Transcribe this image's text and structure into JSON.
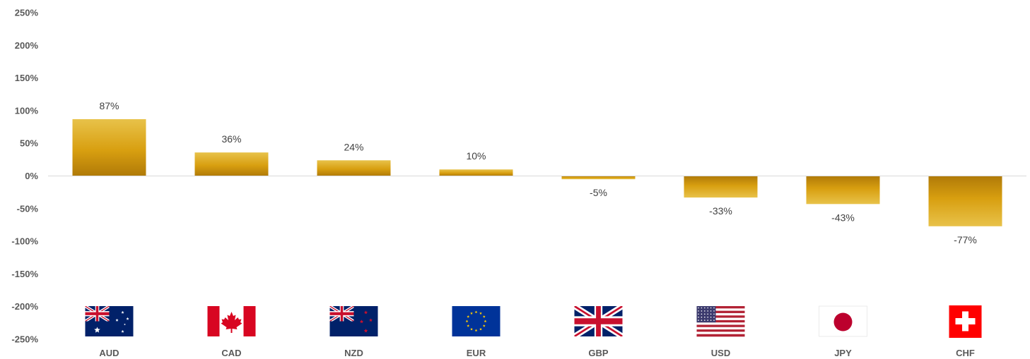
{
  "chart_data": {
    "type": "bar",
    "categories": [
      "AUD",
      "CAD",
      "NZD",
      "EUR",
      "GBP",
      "USD",
      "JPY",
      "CHF"
    ],
    "values": [
      87,
      36,
      24,
      10,
      -5,
      -33,
      -43,
      -77
    ],
    "value_labels": [
      "87%",
      "36%",
      "24%",
      "10%",
      "-5%",
      "-33%",
      "-43%",
      "-77%"
    ],
    "ylim": [
      -250,
      250
    ],
    "yticks": [
      250,
      200,
      150,
      100,
      50,
      0,
      -50,
      -100,
      -150,
      -200,
      -250
    ],
    "ytick_labels": [
      "250%",
      "200%",
      "150%",
      "100%",
      "50%",
      "0%",
      "-50%",
      "-100%",
      "-150%",
      "-200%",
      "-250%"
    ],
    "flag_icons": [
      "australia-flag-icon",
      "canada-flag-icon",
      "new-zealand-flag-icon",
      "eu-flag-icon",
      "uk-flag-icon",
      "usa-flag-icon",
      "japan-flag-icon",
      "switzerland-flag-icon"
    ],
    "bar_color_top": "#e8c24a",
    "bar_color_bottom": "#b07a08",
    "grid": false,
    "legend": "none"
  }
}
